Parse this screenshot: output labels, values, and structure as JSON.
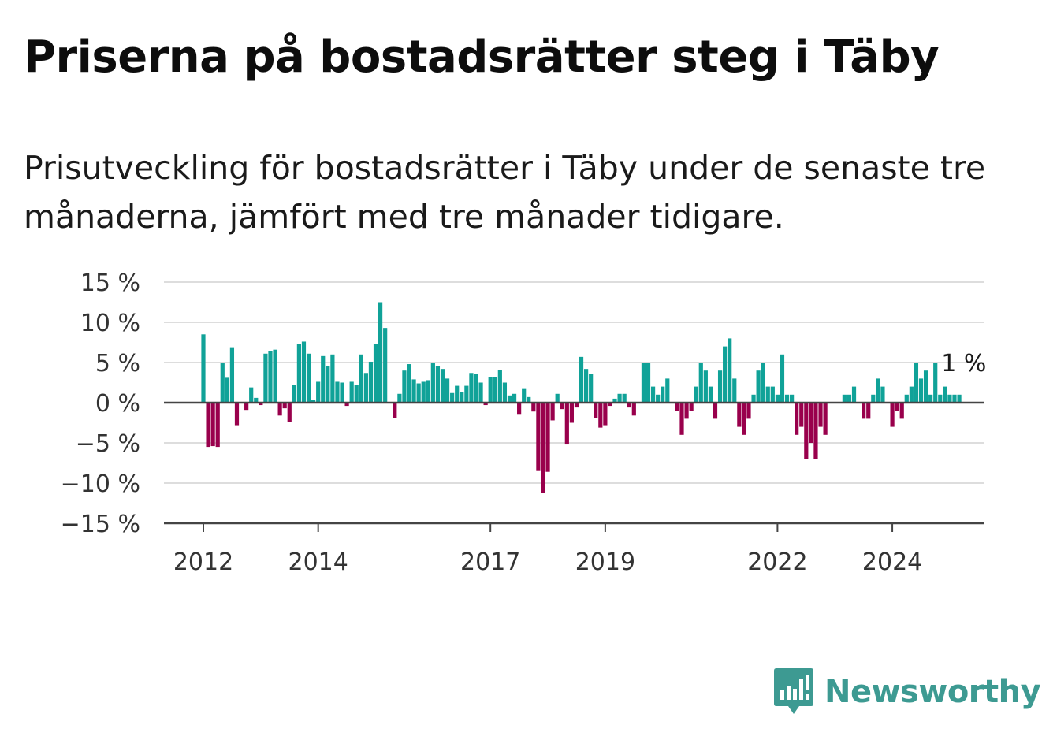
{
  "title": "Priserna på bostadsrätter steg i Täby",
  "subtitle": "Prisutveckling för bostadsrätter i Täby under de senaste tre månaderna, jämfört med tre månader tidigare.",
  "logo_text": "Newsworthy",
  "colors": {
    "positive": "#10a298",
    "negative": "#99004c",
    "grid": "#dddddd",
    "axis": "#444444"
  },
  "chart_data": {
    "type": "bar",
    "ylim": [
      -15,
      15
    ],
    "yticks": [
      15,
      10,
      5,
      0,
      -5,
      -10,
      -15
    ],
    "ytick_labels": [
      "15 %",
      "10 %",
      "5 %",
      "0 %",
      "−5 %",
      "−10 %",
      "−15 %"
    ],
    "xticks": [
      {
        "label": "2012",
        "date": "2012-01"
      },
      {
        "label": "2014",
        "date": "2014-01"
      },
      {
        "label": "2017",
        "date": "2017-01"
      },
      {
        "label": "2019",
        "date": "2019-01"
      },
      {
        "label": "2022",
        "date": "2022-01"
      },
      {
        "label": "2024",
        "date": "2024-01"
      }
    ],
    "grid": true,
    "annotation": {
      "text": "1 %",
      "date": "2024-11"
    },
    "series": [
      {
        "start": "2012-01",
        "frequency": "monthly",
        "values": [
          8.5,
          -5.5,
          -5.4,
          -5.5,
          4.9,
          3.1,
          6.9,
          -2.8,
          0.0,
          -0.9,
          1.9,
          0.6,
          -0.3,
          6.1,
          6.4,
          6.6,
          -1.6,
          -0.7,
          -2.4,
          2.2,
          7.3,
          7.6,
          6.1,
          0.3,
          2.6,
          5.8,
          4.6,
          6.0,
          2.6,
          2.5,
          -0.4,
          2.6,
          2.2,
          6.0,
          3.7,
          5.1,
          7.3,
          12.5,
          9.3,
          0.0,
          -1.9,
          1.1,
          4.0,
          4.8,
          2.9,
          2.4,
          2.6,
          2.8,
          4.9,
          4.6,
          4.2,
          3.0,
          1.2,
          2.1,
          1.3,
          2.1,
          3.7,
          3.6,
          2.5,
          -0.3,
          3.2,
          3.2,
          4.1,
          2.5,
          0.9,
          1.1,
          -1.4,
          1.8,
          0.7,
          -1.1,
          -8.5,
          -11.2,
          -8.6,
          -2.2,
          1.1,
          -0.8,
          -5.2,
          -2.5,
          -0.6,
          5.7,
          4.2,
          3.6,
          -1.9,
          -3.1,
          -2.8,
          -0.4,
          0.5,
          1.1,
          1.1,
          -0.6,
          -1.6,
          0.0,
          5.0,
          5.0,
          2.0,
          1.0,
          2.0,
          3.0,
          0.0,
          -1.0,
          -4.0,
          -2.0,
          -1.0,
          2.0,
          5.0,
          4.0,
          2.0,
          -2.0,
          4.0,
          7.0,
          8.0,
          3.0,
          -3.0,
          -4.0,
          -2.0,
          1.0,
          4.0,
          5.0,
          2.0,
          2.0,
          1.0,
          6.0,
          1.0,
          1.0,
          -4.0,
          -3.0,
          -7.0,
          -5.0,
          -7.0,
          -3.0,
          -4.0,
          0.0,
          0.0,
          0.0,
          1.0,
          1.0,
          2.0,
          0.0,
          -2.0,
          -2.0,
          1.0,
          3.0,
          2.0,
          0.0,
          -3.0,
          -1.0,
          -2.0,
          1.0,
          2.0,
          5.0,
          3.0,
          4.0,
          1.0,
          5.0,
          1.0,
          2.0,
          1.0,
          1.0,
          1.0
        ]
      }
    ]
  }
}
